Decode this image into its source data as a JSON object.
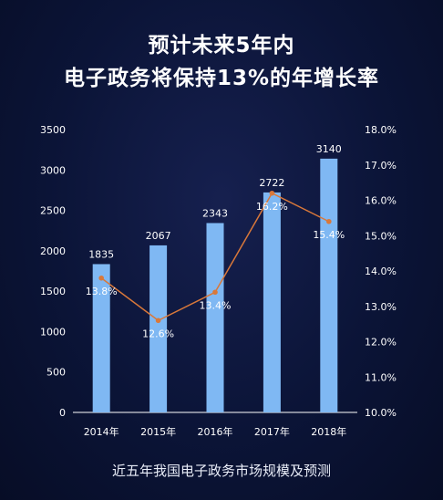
{
  "title_line1": "预计未来5年内",
  "title_line2": "电子政务将保持13%的年增长率",
  "caption": "近五年我国电子政务市场规模及预测",
  "colors": {
    "bar": "#7fb8f3",
    "line": "#d9783a",
    "text": "#ffffff",
    "axis": "#ffffff"
  },
  "chart_data": {
    "type": "bar",
    "categories": [
      "2014年",
      "2015年",
      "2016年",
      "2017年",
      "2018年"
    ],
    "series": [
      {
        "values": [
          1835,
          2067,
          2343,
          2722,
          3140
        ],
        "axis": "left",
        "type": "bar",
        "labels": [
          "1835",
          "2067",
          "2343",
          "2722",
          "3140"
        ]
      },
      {
        "values": [
          13.8,
          12.6,
          13.4,
          16.2,
          15.4
        ],
        "axis": "right",
        "type": "line",
        "labels": [
          "13.8%",
          "12.6%",
          "13.4%",
          "16.2%",
          "15.4%"
        ]
      }
    ],
    "ylim_left": [
      0,
      3500
    ],
    "yticks_left": [
      "0",
      "500",
      "1000",
      "1500",
      "2000",
      "2500",
      "3000",
      "3500"
    ],
    "ylim_right": [
      10.0,
      18.0
    ],
    "yticks_right": [
      "10.0%",
      "11.0%",
      "12.0%",
      "13.0%",
      "14.0%",
      "15.0%",
      "16.0%",
      "17.0%",
      "18.0%"
    ],
    "grid": false
  }
}
